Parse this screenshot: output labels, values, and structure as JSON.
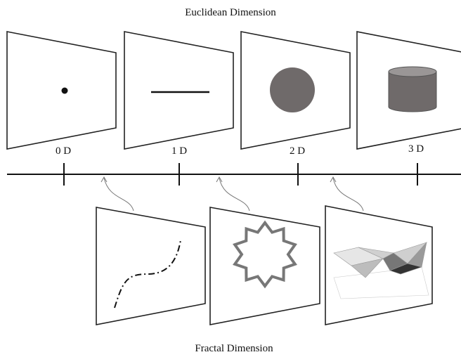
{
  "euclidean": {
    "title": "Euclidean Dimension",
    "labels": [
      "0 D",
      "1 D",
      "2 D",
      "3 D"
    ]
  },
  "fractal": {
    "title": "Fractal Dimension"
  }
}
